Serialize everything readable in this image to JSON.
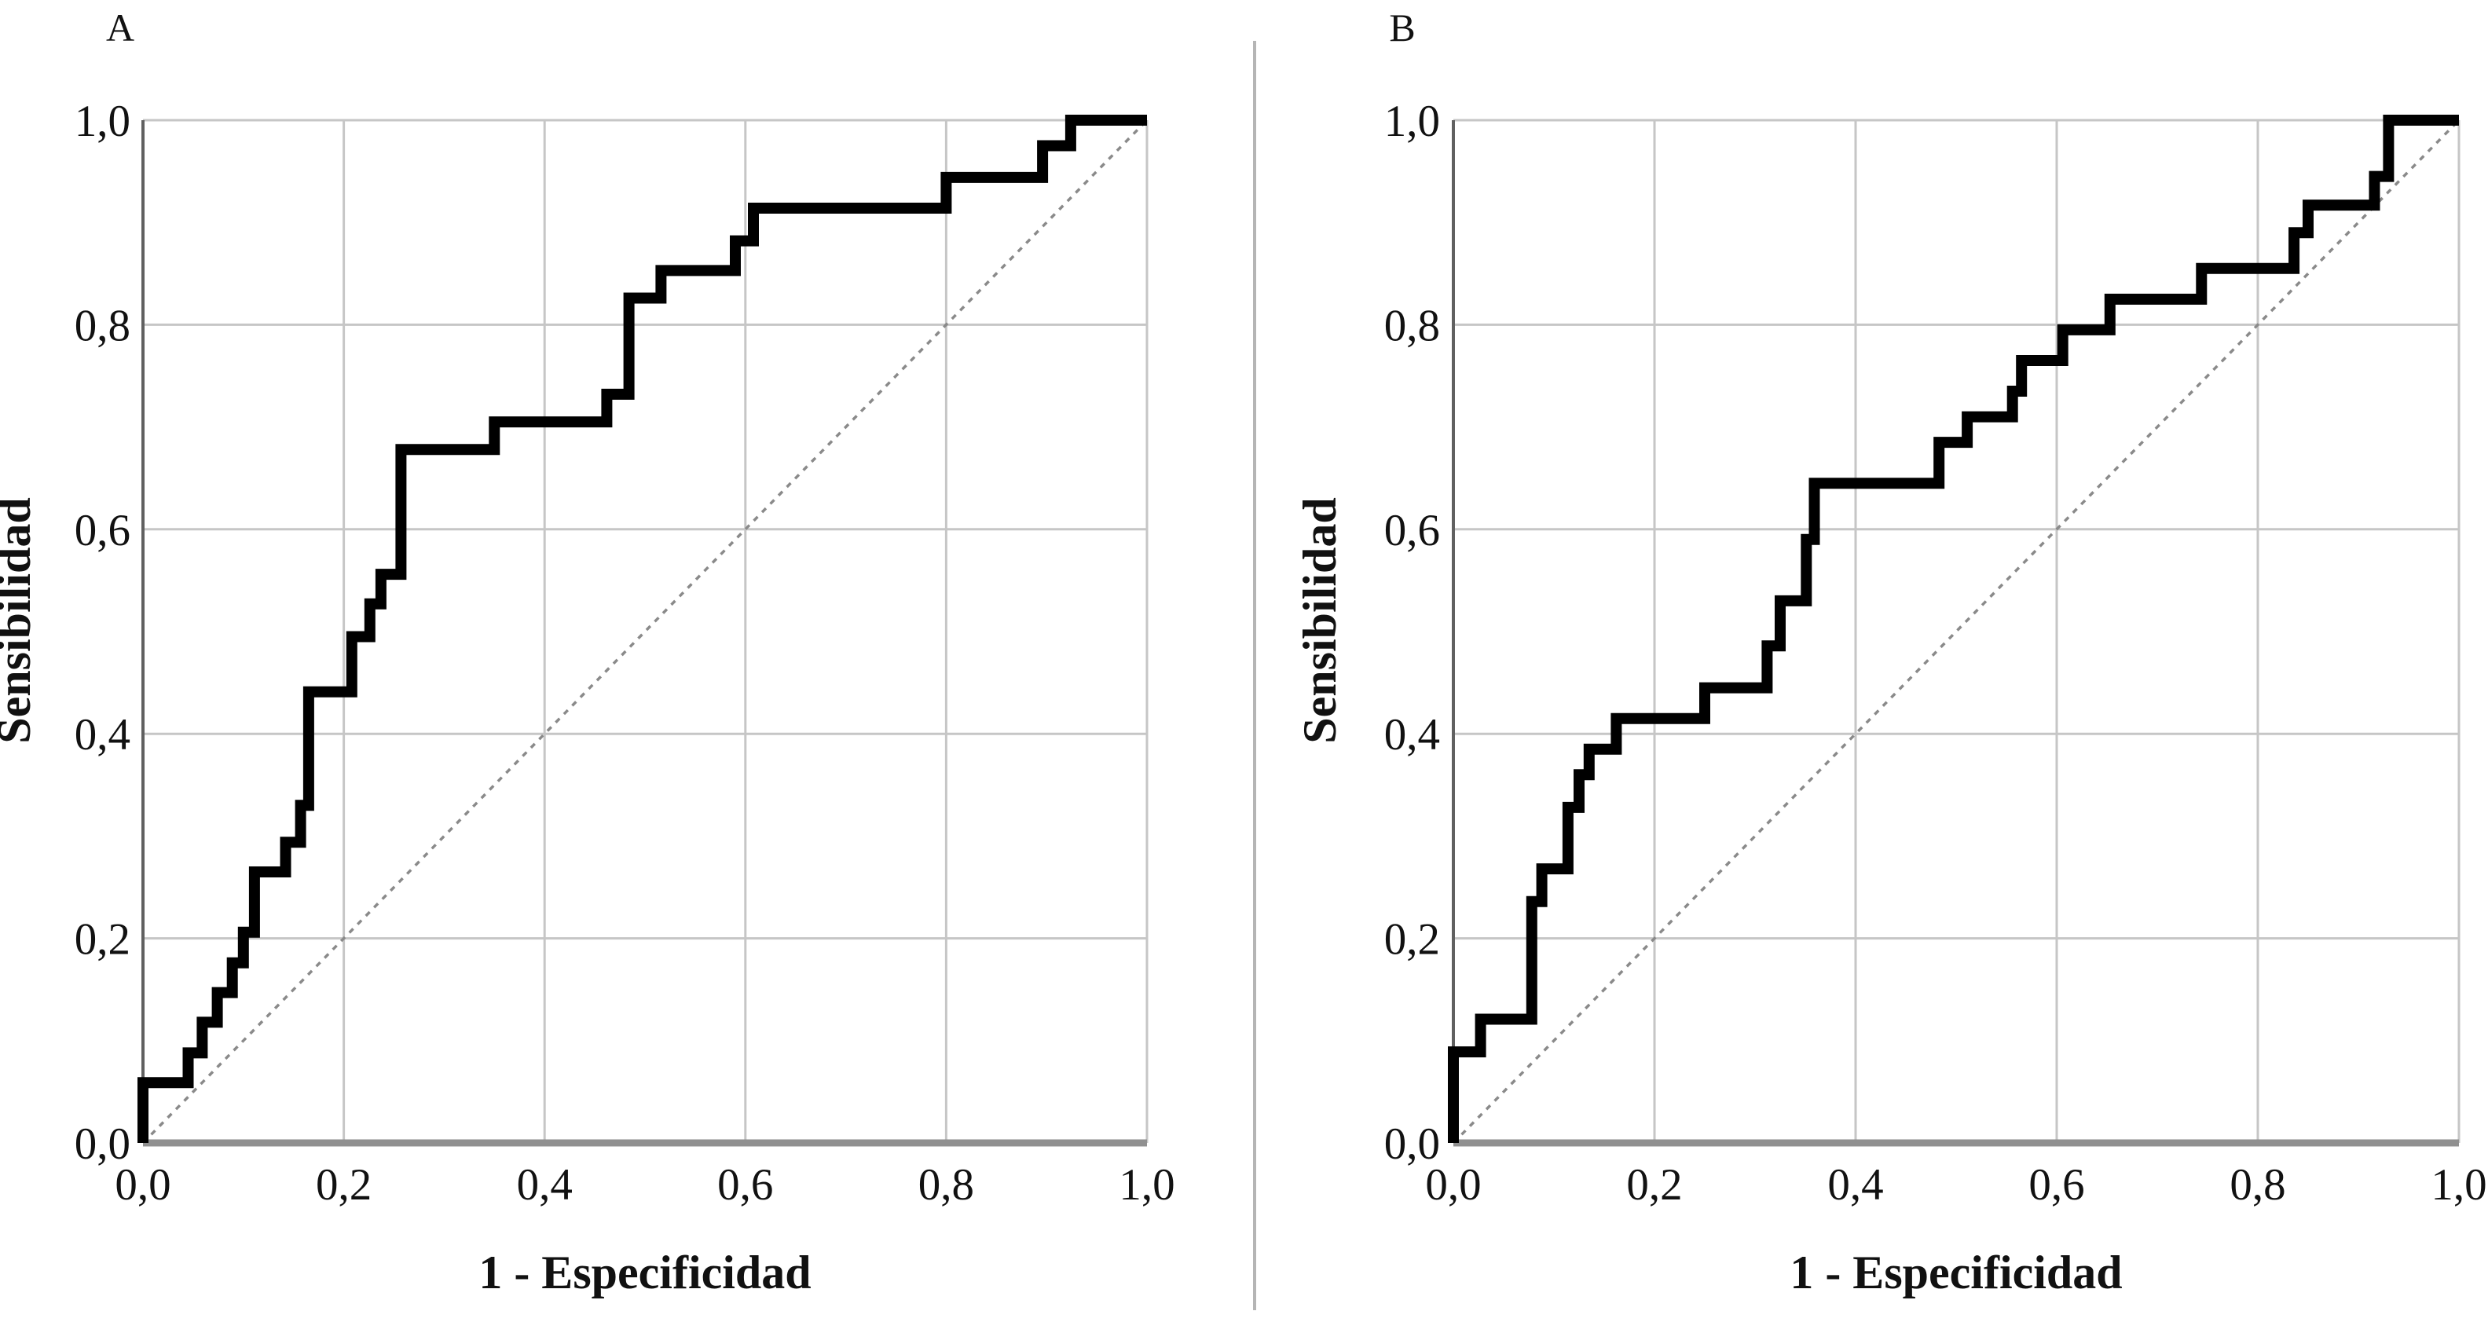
{
  "figure": {
    "background": "#ffffff",
    "curve_color": "#000000",
    "grid_color": "#c6c6c6",
    "axis_x_color": "#909090",
    "axis_y_color": "#606060",
    "diagonal_color": "#8a8a8a",
    "divider_color": "#b5b5b5",
    "text_color": "#111111"
  },
  "panels": [
    {
      "letter": "A",
      "x_label": "1 - Especificidad",
      "y_label": "Sensibilidad",
      "x_ticks": [
        "0,0",
        "0,2",
        "0,4",
        "0,6",
        "0,8",
        "1,0"
      ],
      "y_ticks": [
        "0,0",
        "0,2",
        "0,4",
        "0,6",
        "0,8",
        "1,0"
      ]
    },
    {
      "letter": "B",
      "x_label": "1 - Especificidad",
      "y_label": "Sensibilidad",
      "x_ticks": [
        "0,0",
        "0,2",
        "0,4",
        "0,6",
        "0,8",
        "1,0"
      ],
      "y_ticks": [
        "0,0",
        "0,2",
        "0,4",
        "0,6",
        "0,8",
        "1,0"
      ]
    }
  ],
  "chart_data": [
    {
      "type": "line",
      "subtype": "roc_step_curve",
      "panel": "A",
      "title": "A",
      "xlabel": "1 - Especificidad",
      "ylabel": "Sensibilidad",
      "xlim": [
        0,
        1
      ],
      "ylim": [
        0,
        1
      ],
      "x_tick_values": [
        0,
        0.2,
        0.4,
        0.6,
        0.8,
        1
      ],
      "y_tick_values": [
        0,
        0.2,
        0.4,
        0.6,
        0.8,
        1
      ],
      "decimal_separator": ",",
      "grid": true,
      "legend": "none",
      "series": [
        {
          "name": "roc_curve",
          "style": "solid",
          "points": [
            [
              0,
              0
            ],
            [
              0,
              0.059
            ],
            [
              0.045,
              0.059
            ],
            [
              0.045,
              0.088
            ],
            [
              0.059,
              0.088
            ],
            [
              0.059,
              0.118
            ],
            [
              0.074,
              0.118
            ],
            [
              0.074,
              0.147
            ],
            [
              0.089,
              0.147
            ],
            [
              0.089,
              0.176
            ],
            [
              0.1,
              0.176
            ],
            [
              0.1,
              0.206
            ],
            [
              0.111,
              0.206
            ],
            [
              0.111,
              0.265
            ],
            [
              0.142,
              0.265
            ],
            [
              0.142,
              0.294
            ],
            [
              0.157,
              0.294
            ],
            [
              0.157,
              0.33
            ],
            [
              0.165,
              0.33
            ],
            [
              0.165,
              0.441
            ],
            [
              0.208,
              0.441
            ],
            [
              0.208,
              0.495
            ],
            [
              0.226,
              0.495
            ],
            [
              0.226,
              0.527
            ],
            [
              0.237,
              0.527
            ],
            [
              0.237,
              0.556
            ],
            [
              0.257,
              0.556
            ],
            [
              0.257,
              0.678
            ],
            [
              0.35,
              0.678
            ],
            [
              0.35,
              0.705
            ],
            [
              0.462,
              0.705
            ],
            [
              0.462,
              0.732
            ],
            [
              0.484,
              0.732
            ],
            [
              0.484,
              0.826
            ],
            [
              0.516,
              0.826
            ],
            [
              0.516,
              0.853
            ],
            [
              0.59,
              0.853
            ],
            [
              0.59,
              0.882
            ],
            [
              0.608,
              0.882
            ],
            [
              0.608,
              0.914
            ],
            [
              0.8,
              0.914
            ],
            [
              0.8,
              0.944
            ],
            [
              0.896,
              0.944
            ],
            [
              0.896,
              0.975
            ],
            [
              0.924,
              0.975
            ],
            [
              0.924,
              1
            ],
            [
              1,
              1
            ]
          ]
        },
        {
          "name": "reference_diagonal",
          "style": "dashed",
          "points": [
            [
              0,
              0
            ],
            [
              1,
              1
            ]
          ]
        }
      ]
    },
    {
      "type": "line",
      "subtype": "roc_step_curve",
      "panel": "B",
      "title": "B",
      "xlabel": "1 - Especificidad",
      "ylabel": "Sensibilidad",
      "xlim": [
        0,
        1
      ],
      "ylim": [
        0,
        1
      ],
      "x_tick_values": [
        0,
        0.2,
        0.4,
        0.6,
        0.8,
        1
      ],
      "y_tick_values": [
        0,
        0.2,
        0.4,
        0.6,
        0.8,
        1
      ],
      "decimal_separator": ",",
      "grid": true,
      "legend": "none",
      "series": [
        {
          "name": "roc_curve",
          "style": "solid",
          "points": [
            [
              0,
              0
            ],
            [
              0,
              0.089
            ],
            [
              0.027,
              0.089
            ],
            [
              0.027,
              0.121
            ],
            [
              0.078,
              0.121
            ],
            [
              0.078,
              0.236
            ],
            [
              0.088,
              0.236
            ],
            [
              0.088,
              0.268
            ],
            [
              0.114,
              0.268
            ],
            [
              0.114,
              0.328
            ],
            [
              0.125,
              0.328
            ],
            [
              0.125,
              0.36
            ],
            [
              0.135,
              0.36
            ],
            [
              0.135,
              0.385
            ],
            [
              0.162,
              0.385
            ],
            [
              0.162,
              0.415
            ],
            [
              0.25,
              0.415
            ],
            [
              0.25,
              0.445
            ],
            [
              0.312,
              0.445
            ],
            [
              0.312,
              0.486
            ],
            [
              0.325,
              0.486
            ],
            [
              0.325,
              0.53
            ],
            [
              0.351,
              0.53
            ],
            [
              0.351,
              0.59
            ],
            [
              0.359,
              0.59
            ],
            [
              0.359,
              0.645
            ],
            [
              0.483,
              0.645
            ],
            [
              0.483,
              0.685
            ],
            [
              0.511,
              0.685
            ],
            [
              0.511,
              0.71
            ],
            [
              0.556,
              0.71
            ],
            [
              0.556,
              0.735
            ],
            [
              0.565,
              0.735
            ],
            [
              0.565,
              0.765
            ],
            [
              0.606,
              0.765
            ],
            [
              0.606,
              0.795
            ],
            [
              0.653,
              0.795
            ],
            [
              0.653,
              0.825
            ],
            [
              0.744,
              0.825
            ],
            [
              0.744,
              0.855
            ],
            [
              0.836,
              0.855
            ],
            [
              0.836,
              0.89
            ],
            [
              0.85,
              0.89
            ],
            [
              0.85,
              0.917
            ],
            [
              0.916,
              0.917
            ],
            [
              0.916,
              0.945
            ],
            [
              0.93,
              0.945
            ],
            [
              0.93,
              1
            ],
            [
              1,
              1
            ]
          ]
        },
        {
          "name": "reference_diagonal",
          "style": "dashed",
          "points": [
            [
              0,
              0
            ],
            [
              1,
              1
            ]
          ]
        }
      ]
    }
  ]
}
